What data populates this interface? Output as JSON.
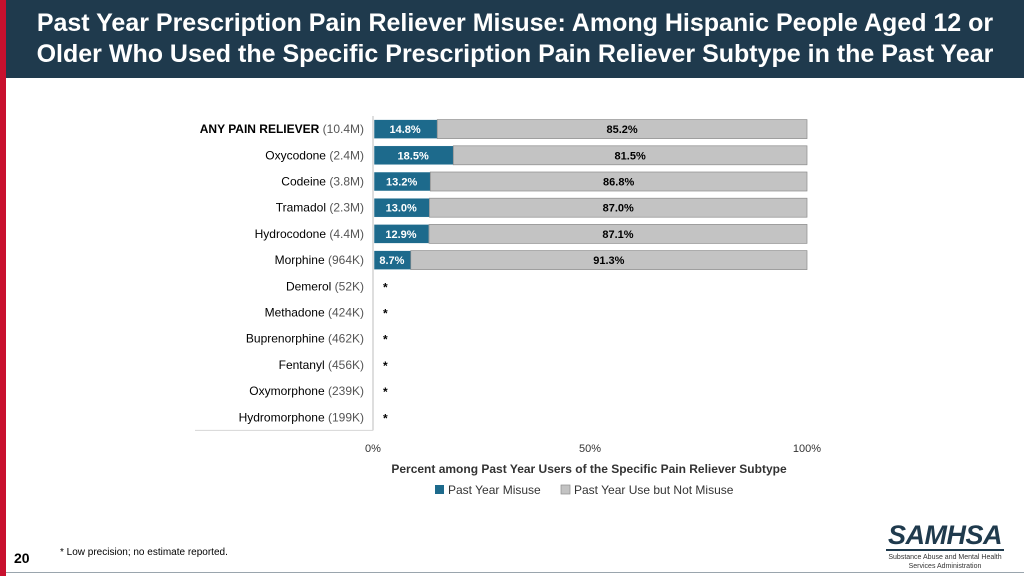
{
  "title": "Past Year Prescription Pain Reliever Misuse: Among Hispanic People Aged 12 or Older Who Used the Specific Prescription Pain Reliever Subtype in the Past Year",
  "page_number": "20",
  "footnote": "* Low precision; no estimate reported.",
  "logo": {
    "name": "SAMHSA",
    "subtitle_line1": "Substance Abuse and Mental Health",
    "subtitle_line2": "Services Administration"
  },
  "colors": {
    "misuse": "#1d6a8c",
    "use_not_misuse": "#c3c3c3",
    "header": "#1f3a4d",
    "accent": "#c8102e"
  },
  "chart_data": {
    "type": "bar",
    "orientation": "horizontal",
    "stacked": true,
    "title": "Past Year Prescription Pain Reliever Misuse: Among Hispanic People Aged 12 or Older Who Used the Specific Prescription Pain Reliever Subtype in the Past Year",
    "xlabel": "Percent among Past Year Users of the Specific Pain Reliever Subtype",
    "xlim": [
      0,
      100
    ],
    "xticks": [
      "0%",
      "50%",
      "100%"
    ],
    "legend": [
      "Past Year Misuse",
      "Past Year Use but Not Misuse"
    ],
    "categories": [
      {
        "name": "ANY PAIN RELIEVER",
        "count": "(10.4M)",
        "bold": true
      },
      {
        "name": "Oxycodone",
        "count": "(2.4M)"
      },
      {
        "name": "Codeine",
        "count": "(3.8M)"
      },
      {
        "name": "Tramadol",
        "count": "(2.3M)"
      },
      {
        "name": "Hydrocodone",
        "count": "(4.4M)"
      },
      {
        "name": "Morphine",
        "count": "(964K)"
      },
      {
        "name": "Demerol",
        "count": "(52K)"
      },
      {
        "name": "Methadone",
        "count": "(424K)"
      },
      {
        "name": "Buprenorphine",
        "count": "(462K)"
      },
      {
        "name": "Fentanyl",
        "count": "(456K)"
      },
      {
        "name": "Oxymorphone",
        "count": "(239K)"
      },
      {
        "name": "Hydromorphone",
        "count": "(199K)"
      }
    ],
    "series": [
      {
        "name": "Past Year Misuse",
        "values": [
          14.8,
          18.5,
          13.2,
          13.0,
          12.9,
          8.7,
          null,
          null,
          null,
          null,
          null,
          null
        ],
        "labels": [
          "14.8%",
          "18.5%",
          "13.2%",
          "13.0%",
          "12.9%",
          "8.7%",
          "*",
          "*",
          "*",
          "*",
          "*",
          "*"
        ]
      },
      {
        "name": "Past Year Use but Not Misuse",
        "values": [
          85.2,
          81.5,
          86.8,
          87.0,
          87.1,
          91.3,
          null,
          null,
          null,
          null,
          null,
          null
        ],
        "labels": [
          "85.2%",
          "81.5%",
          "86.8%",
          "87.0%",
          "87.1%",
          "91.3%",
          "",
          "",
          "",
          "",
          "",
          ""
        ]
      }
    ]
  }
}
